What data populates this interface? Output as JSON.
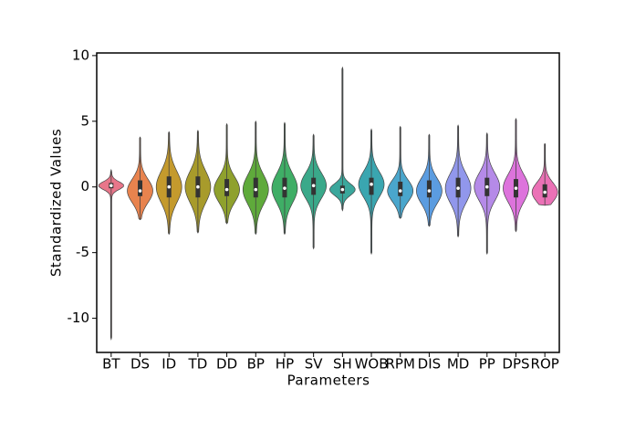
{
  "chart_data": {
    "type": "violin",
    "x_label": "Parameters",
    "y_label": "Standardized Values",
    "ylim": [
      -12.6,
      10.2
    ],
    "yticks": [
      -10,
      -5,
      0,
      5,
      10
    ],
    "categories": [
      "BT",
      "DS",
      "ID",
      "TD",
      "DD",
      "BP",
      "HP",
      "SV",
      "SH",
      "WOB",
      "RPM",
      "DIS",
      "MD",
      "PP",
      "DPS",
      "ROP"
    ],
    "colors": [
      "#e8768a",
      "#e8834e",
      "#c49a2d",
      "#a89b2b",
      "#8fa12d",
      "#5faa3b",
      "#3fae66",
      "#3aa98a",
      "#3ba79c",
      "#3aa6b0",
      "#4aa6cc",
      "#5b9ce0",
      "#9197ec",
      "#b58ae8",
      "#dd73dc",
      "#eb71b6"
    ],
    "min": [
      -11.6,
      -2.5,
      -3.6,
      -3.5,
      -2.8,
      -3.6,
      -3.6,
      -4.7,
      -1.8,
      -5.1,
      -2.4,
      -3.0,
      -3.8,
      -5.1,
      -3.4,
      -1.4
    ],
    "q1": [
      -0.1,
      -0.7,
      -0.8,
      -0.8,
      -0.7,
      -0.8,
      -0.8,
      -0.6,
      -0.5,
      -0.6,
      -0.7,
      -0.8,
      -0.8,
      -0.7,
      -0.8,
      -0.8
    ],
    "median": [
      0.1,
      -0.3,
      0,
      0,
      -0.2,
      -0.2,
      -0.1,
      0.1,
      -0.2,
      0.2,
      -0.3,
      -0.3,
      -0.1,
      0,
      -0.1,
      -0.4
    ],
    "q3": [
      0.3,
      0.5,
      0.8,
      0.8,
      0.6,
      0.7,
      0.7,
      0.7,
      0.1,
      0.7,
      0.4,
      0.5,
      0.7,
      0.7,
      0.6,
      0.2
    ],
    "max": [
      1.3,
      3.8,
      4.2,
      4.3,
      4.8,
      5.0,
      4.9,
      4.0,
      9.1,
      4.4,
      4.6,
      4.0,
      4.7,
      4.1,
      5.2,
      3.3
    ]
  }
}
